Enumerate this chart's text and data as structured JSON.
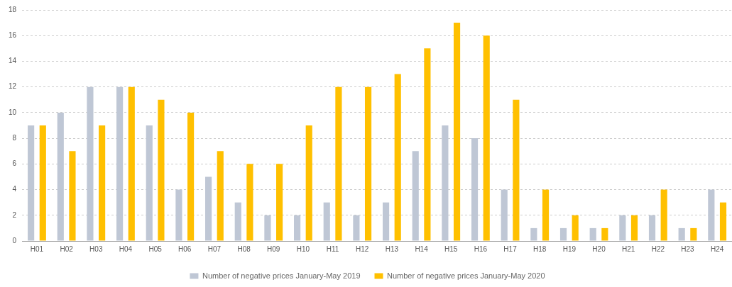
{
  "chart_data": {
    "type": "bar",
    "categories": [
      "H01",
      "H02",
      "H03",
      "H04",
      "H05",
      "H06",
      "H07",
      "H08",
      "H09",
      "H10",
      "H11",
      "H12",
      "H13",
      "H14",
      "H15",
      "H16",
      "H17",
      "H18",
      "H19",
      "H20",
      "H21",
      "H22",
      "H23",
      "H24"
    ],
    "series": [
      {
        "name": "Number of negative prices January-May 2019",
        "color": "#bfc7d5",
        "values": [
          9,
          10,
          12,
          12,
          9,
          4,
          5,
          3,
          2,
          2,
          3,
          2,
          3,
          7,
          9,
          8,
          4,
          1,
          1,
          1,
          2,
          2,
          1,
          4
        ]
      },
      {
        "name": "Number of negative prices January-May 2020",
        "color": "#ffc000",
        "values": [
          9,
          7,
          9,
          12,
          11,
          10,
          7,
          6,
          6,
          9,
          12,
          12,
          13,
          15,
          17,
          16,
          11,
          4,
          2,
          1,
          2,
          4,
          1,
          3
        ]
      }
    ],
    "ylim": [
      0,
      18
    ],
    "yticks": [
      0,
      2,
      4,
      6,
      8,
      10,
      12,
      14,
      16,
      18
    ],
    "grid": "y",
    "legend": "bottom"
  }
}
